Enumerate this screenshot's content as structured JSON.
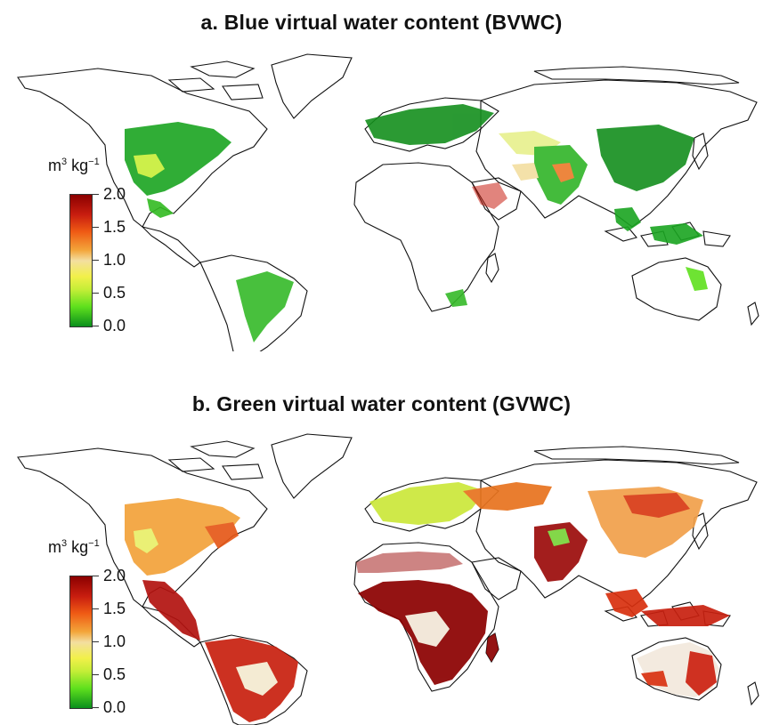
{
  "panels": [
    {
      "title": "a. Blue virtual water content (BVWC)",
      "legend": {
        "unit_base": "m",
        "unit_base_sup": "3",
        "unit_rest": " kg",
        "unit_rest_sup": "−1",
        "ticks": [
          "2.0",
          "1.5",
          "1.0",
          "0.5",
          "0.0"
        ],
        "colors": [
          "#8b0000",
          "#ef5a14",
          "#f3dea0",
          "#c4ee37",
          "#0a8f1c"
        ]
      }
    },
    {
      "title": "b. Green virtual water content (GVWC)",
      "legend": {
        "unit_base": "m",
        "unit_base_sup": "3",
        "unit_rest": " kg",
        "unit_rest_sup": "−1",
        "ticks": [
          "2.0",
          "1.5",
          "1.0",
          "0.5",
          "0.0"
        ],
        "colors": [
          "#8b0000",
          "#ef5a14",
          "#f3dea0",
          "#c4ee37",
          "#0a8f1c"
        ]
      }
    }
  ]
}
